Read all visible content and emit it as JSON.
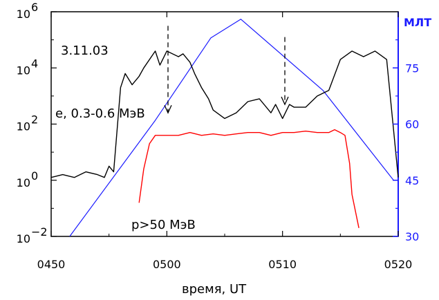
{
  "chart_data": {
    "type": "line",
    "x_axis": {
      "label": "время, UT",
      "range": [
        "04:50",
        "05:20"
      ],
      "ticks": [
        "0450",
        "0500",
        "0510",
        "0520"
      ]
    },
    "y_left": {
      "scale": "log",
      "range_exp": [
        -2,
        6
      ],
      "ticks": [
        {
          "base": "10",
          "exp": "6"
        },
        {
          "base": "10",
          "exp": "4"
        },
        {
          "base": "10",
          "exp": "2"
        },
        {
          "base": "10",
          "exp": "0"
        },
        {
          "base": "10",
          "exp": "−2"
        }
      ]
    },
    "y_right": {
      "label": "МЛТ",
      "range": [
        30,
        90
      ],
      "ticks": [
        "75",
        "60",
        "45",
        "30"
      ],
      "color": "#1a1aff"
    },
    "date_label": "3.11.03",
    "series": [
      {
        "name": "e, 0.3-0.6 МэВ",
        "axis": "left",
        "color": "#000000",
        "x_min": [
          0,
          1,
          2,
          3,
          4,
          4.6,
          5,
          5.4,
          6,
          6.4,
          7,
          7.6,
          8,
          9,
          9.4,
          10,
          11,
          11.4,
          12,
          12.4,
          13,
          13.6,
          14,
          15,
          16,
          17,
          18,
          19,
          19.4,
          20,
          20.6,
          21,
          21.6,
          22,
          23,
          24,
          25,
          26,
          27,
          28,
          29,
          30
        ],
        "y_log": [
          0.1,
          0.2,
          0.1,
          0.3,
          0.2,
          0.1,
          0.5,
          0.3,
          3.3,
          3.8,
          3.4,
          3.7,
          4.0,
          4.6,
          4.1,
          4.6,
          4.4,
          4.5,
          4.2,
          3.8,
          3.3,
          2.9,
          2.5,
          2.2,
          2.4,
          2.8,
          2.9,
          2.4,
          2.7,
          2.2,
          2.7,
          2.6,
          2.6,
          2.6,
          3.0,
          3.2,
          4.3,
          4.6,
          4.4,
          4.6,
          4.3,
          0.1
        ]
      },
      {
        "name": "p>50 МэВ",
        "axis": "left",
        "color": "#ff0000",
        "x_min": [
          7.6,
          8,
          8.5,
          9,
          10,
          11,
          12,
          13,
          14,
          15,
          16,
          17,
          18,
          19,
          20,
          21,
          22,
          23,
          24,
          24.5,
          25,
          25.4,
          25.8,
          26,
          26.6
        ],
        "y_log": [
          -0.8,
          0.4,
          1.3,
          1.6,
          1.6,
          1.6,
          1.7,
          1.6,
          1.65,
          1.6,
          1.65,
          1.7,
          1.7,
          1.6,
          1.7,
          1.7,
          1.75,
          1.7,
          1.7,
          1.8,
          1.7,
          1.6,
          0.6,
          -0.5,
          -1.7
        ]
      },
      {
        "name": "",
        "axis": "right",
        "color": "#1a1aff",
        "x_min": [
          1.6,
          9.0,
          13.8,
          16.4,
          23.5,
          29.6
        ],
        "y": [
          30,
          61,
          83,
          88,
          69,
          45
        ]
      }
    ],
    "annotations": [
      {
        "text": "3.11.03"
      },
      {
        "text": "e, 0.3-0.6 МэВ"
      },
      {
        "text": "p>50 МэВ"
      }
    ],
    "markers": [
      {
        "type": "dashed-arrow",
        "x_min": 10.1,
        "y_log_top": 5.5,
        "y_log_bottom": 2.4
      },
      {
        "type": "dashed-arrow",
        "x_min": 20.2,
        "y_log_top": 5.1,
        "y_log_bottom": 2.7
      }
    ]
  }
}
